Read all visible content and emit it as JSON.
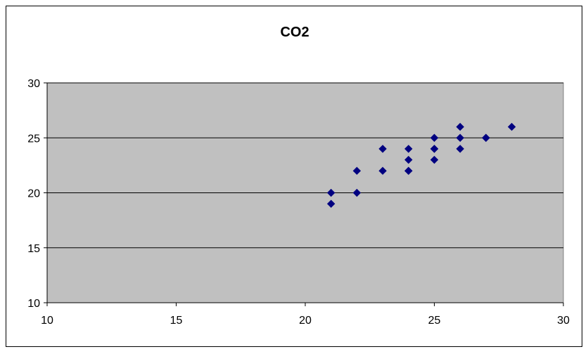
{
  "chart_data": {
    "type": "scatter",
    "title": "CO2",
    "xlabel": "",
    "ylabel": "",
    "xlim": [
      10,
      30
    ],
    "ylim": [
      10,
      30
    ],
    "xticks": [
      "10",
      "15",
      "20",
      "25",
      "30"
    ],
    "yticks": [
      "10",
      "15",
      "20",
      "25",
      "30"
    ],
    "grid": "horizontal major gridlines",
    "legend": "none",
    "series": [
      {
        "x": [
          21,
          21,
          22,
          22,
          23,
          23,
          24,
          24,
          24,
          24,
          25,
          25,
          25,
          25,
          26,
          26,
          26,
          27,
          27,
          28
        ],
        "y": [
          20,
          19,
          22,
          20,
          24,
          22,
          24,
          23,
          22,
          22,
          25,
          24,
          24,
          23,
          26,
          25,
          24,
          25,
          25,
          26
        ]
      }
    ],
    "colors": {
      "plot_background": "#c0c0c0",
      "marker": "#000080",
      "gridline": "#000000"
    },
    "marker": "diamond"
  }
}
